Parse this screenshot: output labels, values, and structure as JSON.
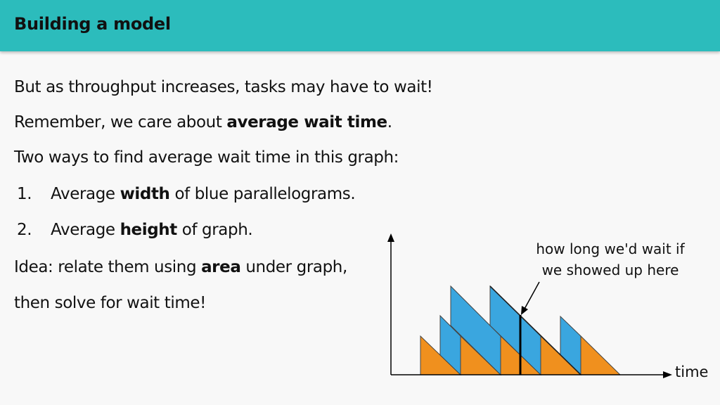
{
  "header": {
    "title": "Building a model"
  },
  "lines": {
    "line1": "But as throughput increases, tasks may have to wait!",
    "line2_pre": "Remember, we care about ",
    "line2_bold": "average wait time",
    "line2_post": ".",
    "line3": "Two ways to find average wait time in this graph:",
    "item1_num": "1.",
    "item1_pre": "Average ",
    "item1_bold": "width",
    "item1_post": " of blue parallelograms.",
    "item2_num": "2.",
    "item2_pre": "Average ",
    "item2_bold": "height",
    "item2_post": " of graph.",
    "line6_pre": "Idea: relate them using ",
    "line6_bold": "area",
    "line6_post": " under graph,",
    "line7": "then solve for wait time!"
  },
  "diagram": {
    "annotation_line1": "how long we'd wait if",
    "annotation_line2": "we showed up here",
    "axis_label_x": "time",
    "colors": {
      "orange": "#f0901e",
      "blue": "#3aa6df",
      "header": "#2cbcbc"
    }
  }
}
